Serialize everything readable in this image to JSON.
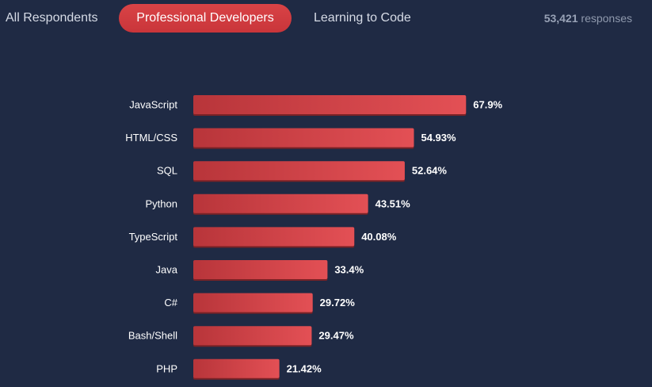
{
  "tabs": [
    {
      "label": "All Respondents",
      "active": false
    },
    {
      "label": "Professional Developers",
      "active": true
    },
    {
      "label": "Learning to Code",
      "active": false
    }
  ],
  "responses": {
    "count": "53,421",
    "label": "responses"
  },
  "colors": {
    "background": "#1f2a44",
    "bar_dark": "#b8353a",
    "bar_light": "#e35055",
    "accent": "#d2393c"
  },
  "chart_data": {
    "type": "bar",
    "orientation": "horizontal",
    "categories": [
      "JavaScript",
      "HTML/CSS",
      "SQL",
      "Python",
      "TypeScript",
      "Java",
      "C#",
      "Bash/Shell",
      "PHP"
    ],
    "values": [
      67.9,
      54.93,
      52.64,
      43.51,
      40.08,
      33.4,
      29.72,
      29.47,
      21.42
    ],
    "value_labels": [
      "67.9%",
      "54.93%",
      "52.64%",
      "43.51%",
      "40.08%",
      "33.4%",
      "29.72%",
      "29.47%",
      "21.42%"
    ],
    "xlim": [
      0,
      100
    ],
    "grid": false,
    "legend": "none"
  }
}
